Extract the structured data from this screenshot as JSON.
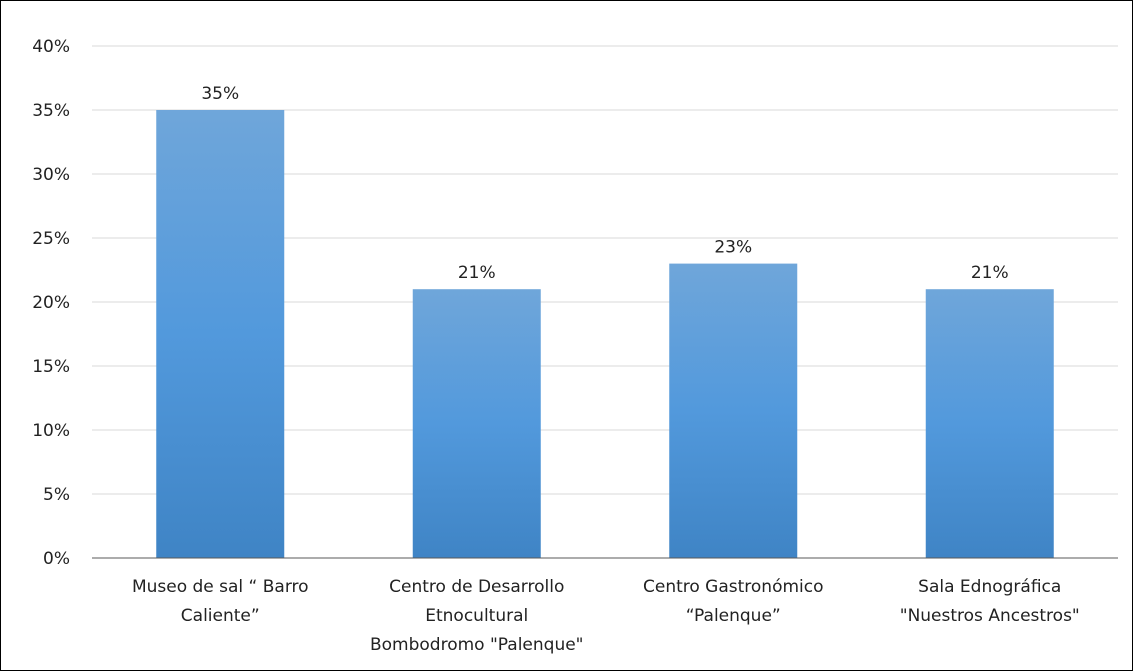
{
  "chart_data": {
    "type": "bar",
    "categories": [
      [
        "Museo de sal “ Barro",
        "Caliente”"
      ],
      [
        "Centro de Desarrollo",
        "Etnocultural",
        "Bombodromo \"Palenque\""
      ],
      [
        "Centro Gastronómico",
        "“Palenque”"
      ],
      [
        "Sala Ednográfica",
        "\"Nuestros Ancestros\""
      ]
    ],
    "values": [
      35,
      21,
      23,
      21
    ],
    "data_labels": [
      "35%",
      "21%",
      "23%",
      "21%"
    ],
    "y_ticks": [
      "0%",
      "5%",
      "10%",
      "15%",
      "20%",
      "25%",
      "30%",
      "35%",
      "40%"
    ],
    "ylim": [
      0,
      40
    ],
    "grid": true,
    "bar_color": "#5b9bd5"
  }
}
